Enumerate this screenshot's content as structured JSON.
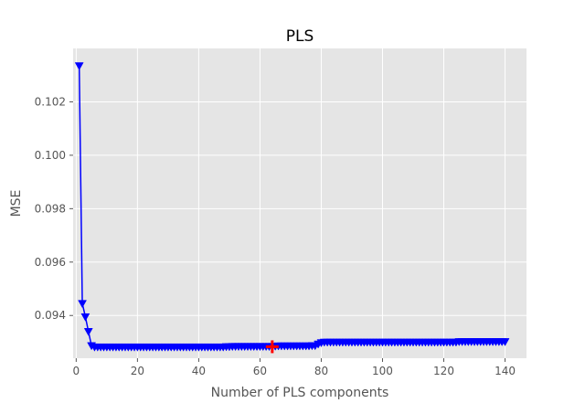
{
  "chart_data": {
    "type": "line",
    "title": "PLS",
    "xlabel": "Number of PLS components",
    "ylabel": "MSE",
    "xlim": [
      -1,
      147
    ],
    "ylim": [
      0.0924,
      0.104
    ],
    "x_ticks": [
      0,
      20,
      40,
      60,
      80,
      100,
      120,
      140
    ],
    "y_ticks": [
      0.094,
      0.096,
      0.098,
      0.1,
      0.102
    ],
    "x_tick_labels": [
      "0",
      "20",
      "40",
      "60",
      "80",
      "100",
      "120",
      "140"
    ],
    "y_tick_labels": [
      "0.094",
      "0.096",
      "0.098",
      "0.100",
      "0.102"
    ],
    "grid": true,
    "background": "#e5e5e5",
    "series": [
      {
        "color": "#0000ff",
        "marker": "triangle-down",
        "x_start": 1,
        "x_step": 1,
        "values": [
          0.10335,
          0.09445,
          0.09395,
          0.0934,
          0.09287,
          0.09282,
          0.09282,
          0.09282,
          0.09282,
          0.09282,
          0.09282,
          0.09282,
          0.09282,
          0.09282,
          0.09282,
          0.09282,
          0.09282,
          0.09282,
          0.09282,
          0.09282,
          0.09282,
          0.09282,
          0.09282,
          0.09282,
          0.09282,
          0.09282,
          0.09282,
          0.09282,
          0.09282,
          0.09282,
          0.09282,
          0.09282,
          0.09282,
          0.09282,
          0.09282,
          0.09282,
          0.09282,
          0.09282,
          0.09282,
          0.09282,
          0.09282,
          0.09282,
          0.09282,
          0.09282,
          0.09282,
          0.09282,
          0.09282,
          0.09282,
          0.09283,
          0.09283,
          0.09284,
          0.09284,
          0.09284,
          0.09284,
          0.09284,
          0.09284,
          0.09284,
          0.09284,
          0.09284,
          0.09284,
          0.09284,
          0.09284,
          0.09284,
          0.09284,
          0.09285,
          0.09286,
          0.09286,
          0.09286,
          0.09286,
          0.09286,
          0.09286,
          0.09286,
          0.09286,
          0.09286,
          0.09286,
          0.09286,
          0.09287,
          0.09287,
          0.09293,
          0.09298,
          0.093,
          0.093,
          0.093,
          0.093,
          0.093,
          0.093,
          0.093,
          0.093,
          0.093,
          0.093,
          0.093,
          0.093,
          0.093,
          0.093,
          0.093,
          0.093,
          0.093,
          0.093,
          0.093,
          0.093,
          0.093,
          0.093,
          0.093,
          0.093,
          0.093,
          0.093,
          0.093,
          0.093,
          0.093,
          0.093,
          0.093,
          0.093,
          0.093,
          0.093,
          0.093,
          0.093,
          0.093,
          0.093,
          0.093,
          0.093,
          0.093,
          0.093,
          0.093,
          0.093,
          0.09302,
          0.09302,
          0.09302,
          0.09302,
          0.09302,
          0.09302,
          0.09302,
          0.09302,
          0.09302,
          0.09302,
          0.09302,
          0.09302,
          0.09302,
          0.09302,
          0.09302,
          0.09302
        ]
      }
    ],
    "highlight": {
      "marker": "plus",
      "color": "#ff0000",
      "x": 64,
      "y": 0.09283
    }
  }
}
